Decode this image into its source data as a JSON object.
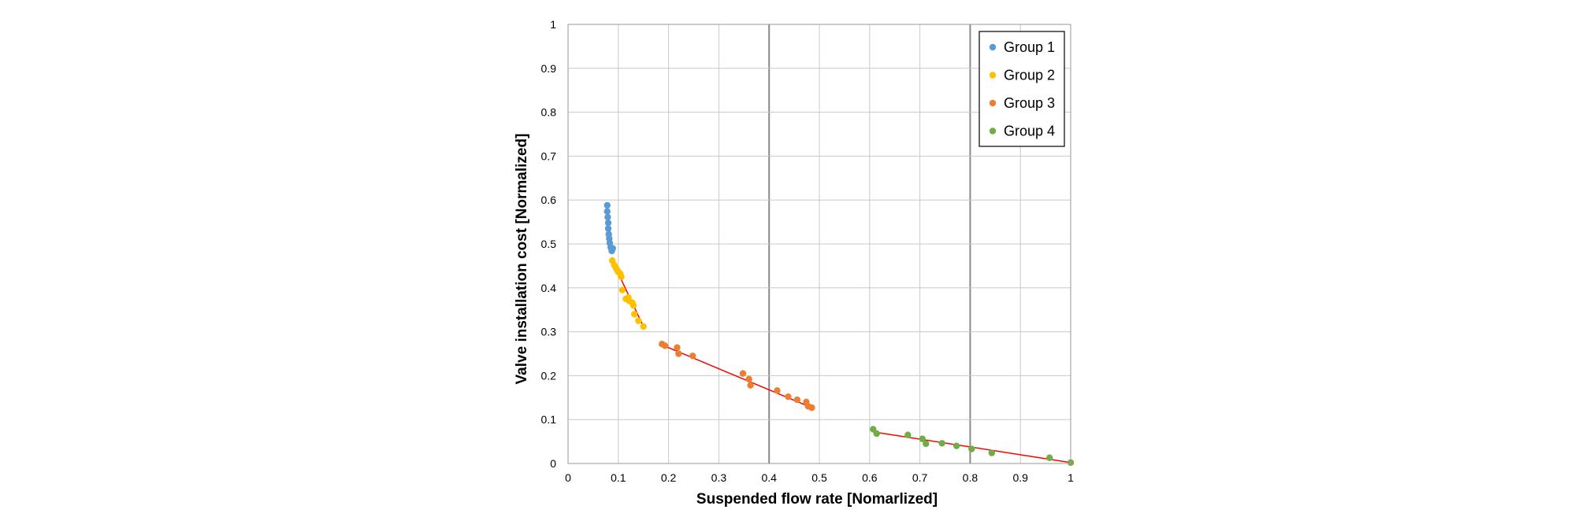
{
  "chart_data": {
    "type": "scatter",
    "xlabel": "Suspended flow rate [Nomarlized]",
    "ylabel": "Valve installation cost [Normalized]",
    "xlim": [
      0,
      1
    ],
    "ylim": [
      0,
      1
    ],
    "xticks": [
      "0",
      "0.1",
      "0.2",
      "0.3",
      "0.4",
      "0.5",
      "0.6",
      "0.7",
      "0.8",
      "0.9",
      "1"
    ],
    "yticks": [
      "0",
      "0.1",
      "0.2",
      "0.3",
      "0.4",
      "0.5",
      "0.6",
      "0.7",
      "0.8",
      "0.9",
      "1"
    ],
    "grid": true,
    "legend_position": "top-right",
    "trendline_color": "#ff0000",
    "series": [
      {
        "name": "Group 1",
        "color": "#5b9bd5",
        "points": [
          [
            0.078,
            0.588
          ],
          [
            0.078,
            0.574
          ],
          [
            0.079,
            0.561
          ],
          [
            0.08,
            0.548
          ],
          [
            0.08,
            0.535
          ],
          [
            0.081,
            0.522
          ],
          [
            0.082,
            0.512
          ],
          [
            0.083,
            0.502
          ],
          [
            0.085,
            0.492
          ],
          [
            0.087,
            0.484
          ],
          [
            0.089,
            0.49
          ]
        ]
      },
      {
        "name": "Group 2",
        "color": "#ffc000",
        "points": [
          [
            0.088,
            0.462
          ],
          [
            0.092,
            0.452
          ],
          [
            0.095,
            0.446
          ],
          [
            0.098,
            0.44
          ],
          [
            0.1,
            0.436
          ],
          [
            0.104,
            0.432
          ],
          [
            0.106,
            0.425
          ],
          [
            0.108,
            0.395
          ],
          [
            0.115,
            0.375
          ],
          [
            0.12,
            0.378
          ],
          [
            0.122,
            0.37
          ],
          [
            0.128,
            0.366
          ],
          [
            0.13,
            0.36
          ],
          [
            0.132,
            0.34
          ],
          [
            0.14,
            0.325
          ],
          [
            0.15,
            0.312
          ]
        ]
      },
      {
        "name": "Group 3",
        "color": "#ed7d31",
        "points": [
          [
            0.187,
            0.272
          ],
          [
            0.193,
            0.268
          ],
          [
            0.217,
            0.264
          ],
          [
            0.22,
            0.25
          ],
          [
            0.248,
            0.245
          ],
          [
            0.348,
            0.205
          ],
          [
            0.36,
            0.192
          ],
          [
            0.363,
            0.178
          ],
          [
            0.416,
            0.166
          ],
          [
            0.438,
            0.152
          ],
          [
            0.456,
            0.145
          ],
          [
            0.474,
            0.14
          ],
          [
            0.478,
            0.13
          ],
          [
            0.485,
            0.127
          ]
        ]
      },
      {
        "name": "Group 4",
        "color": "#70ad47",
        "points": [
          [
            0.607,
            0.078
          ],
          [
            0.614,
            0.068
          ],
          [
            0.676,
            0.065
          ],
          [
            0.705,
            0.056
          ],
          [
            0.712,
            0.045
          ],
          [
            0.744,
            0.046
          ],
          [
            0.773,
            0.04
          ],
          [
            0.803,
            0.033
          ],
          [
            0.843,
            0.024
          ],
          [
            0.958,
            0.013
          ],
          [
            1.0,
            0.002
          ]
        ]
      }
    ],
    "trendlines": [
      {
        "from": [
          0.076,
          0.592
        ],
        "to": [
          0.089,
          0.478
        ]
      },
      {
        "from": [
          0.088,
          0.462
        ],
        "to": [
          0.15,
          0.312
        ]
      },
      {
        "from": [
          0.187,
          0.27
        ],
        "to": [
          0.485,
          0.127
        ]
      },
      {
        "from": [
          0.607,
          0.072
        ],
        "to": [
          1.0,
          0.002
        ]
      }
    ]
  }
}
